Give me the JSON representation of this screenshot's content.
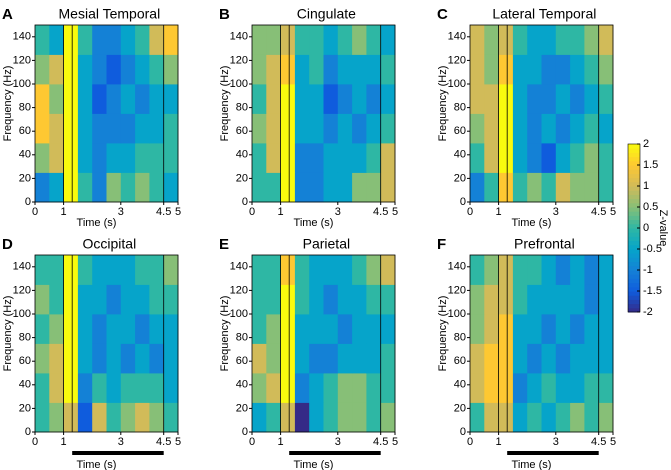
{
  "chart_data": [
    {
      "type": "heatmap",
      "panel": "A",
      "title": "Mesial Temporal",
      "xlabel": "Time (s)",
      "ylabel": "Frequency (Hz)",
      "xlim": [
        0,
        5
      ],
      "ylim": [
        0,
        150
      ],
      "xticks": [
        0,
        1,
        3,
        4.5,
        5
      ],
      "yticks": [
        0,
        20,
        40,
        60,
        80,
        100,
        120,
        140
      ],
      "xbins": [
        0,
        0.5,
        1,
        1.5,
        2,
        2.5,
        3,
        3.5,
        4,
        4.5,
        5
      ],
      "ybins": [
        0,
        25,
        50,
        75,
        100,
        125,
        150
      ],
      "event_lines": [
        1,
        1.3,
        4.5
      ],
      "z": [
        [
          -1,
          -0.5,
          2,
          0,
          -1,
          0.5,
          0,
          0.5,
          0,
          -0.5
        ],
        [
          0.5,
          1,
          2,
          -0.5,
          -1,
          -0.5,
          -0.5,
          0,
          0,
          0
        ],
        [
          1.5,
          1,
          2,
          -0.5,
          -1,
          -1,
          -1,
          -0.5,
          -0.5,
          0
        ],
        [
          1.5,
          0.5,
          2,
          -0.5,
          -1.5,
          -1,
          -0.5,
          -1,
          -0.5,
          -0.5
        ],
        [
          0.5,
          1,
          2,
          -0.5,
          -1,
          -1.5,
          -1,
          -0.5,
          0,
          0.5
        ],
        [
          0,
          -0.5,
          2,
          0,
          -1,
          -1,
          -0.5,
          0,
          1,
          1.5
        ]
      ]
    },
    {
      "type": "heatmap",
      "panel": "B",
      "title": "Cingulate",
      "xlabel": "Time (s)",
      "ylabel": "Frequency (Hz)",
      "xlim": [
        0,
        5
      ],
      "ylim": [
        0,
        150
      ],
      "xticks": [
        0,
        1,
        3,
        4.5,
        5
      ],
      "yticks": [
        0,
        20,
        40,
        60,
        80,
        100,
        120,
        140
      ],
      "xbins": [
        0,
        0.5,
        1,
        1.5,
        2,
        2.5,
        3,
        3.5,
        4,
        4.5,
        5
      ],
      "ybins": [
        0,
        25,
        50,
        75,
        100,
        125,
        150
      ],
      "event_lines": [
        1,
        1.3,
        4.5
      ],
      "z": [
        [
          0,
          0,
          2,
          -1,
          -1,
          -0.5,
          -0.5,
          0.5,
          0.5,
          1
        ],
        [
          0,
          1,
          2,
          -1,
          -1,
          -0.5,
          -0.5,
          -0.5,
          0,
          1
        ],
        [
          0.5,
          1,
          2,
          -0.5,
          -0.5,
          -1,
          -0.5,
          -1,
          -0.5,
          0
        ],
        [
          0,
          1,
          2,
          -0.5,
          -0.5,
          -1.5,
          -1,
          -0.5,
          -1,
          -0.5
        ],
        [
          0.5,
          1,
          1.5,
          -0.5,
          0,
          -1,
          -0.5,
          -0.5,
          -0.5,
          0
        ],
        [
          0.5,
          0.5,
          1,
          0,
          0,
          -0.5,
          0,
          0.5,
          0,
          -0.5
        ]
      ]
    },
    {
      "type": "heatmap",
      "panel": "C",
      "title": "Lateral Temporal",
      "xlabel": "Time (s)",
      "ylabel": "Frequency (Hz)",
      "xlim": [
        0,
        5
      ],
      "ylim": [
        0,
        150
      ],
      "xticks": [
        0,
        1,
        3,
        4.5,
        5
      ],
      "yticks": [
        0,
        20,
        40,
        60,
        80,
        100,
        120,
        140
      ],
      "xbins": [
        0,
        0.5,
        1,
        1.5,
        2,
        2.5,
        3,
        3.5,
        4,
        4.5,
        5
      ],
      "ybins": [
        0,
        25,
        50,
        75,
        100,
        125,
        150
      ],
      "event_lines": [
        1,
        1.3,
        4.5
      ],
      "z": [
        [
          -1,
          0,
          1.5,
          0,
          0.5,
          0,
          1,
          0.5,
          0.5,
          0
        ],
        [
          0,
          1,
          2,
          -0.5,
          -1,
          -1.5,
          -0.5,
          0,
          0.5,
          0
        ],
        [
          0.5,
          1,
          2,
          -0.5,
          -1,
          -0.5,
          -1,
          -0.5,
          0,
          -0.5
        ],
        [
          1,
          1,
          2,
          -0.5,
          -1,
          -1,
          -0.5,
          -1,
          -0.5,
          0
        ],
        [
          1,
          0.5,
          1.5,
          -0.5,
          -0.5,
          -1,
          -1,
          -0.5,
          0,
          0.5
        ],
        [
          1,
          0.5,
          1,
          0,
          -0.5,
          -0.5,
          0,
          0,
          0.5,
          1
        ]
      ]
    },
    {
      "type": "heatmap",
      "panel": "D",
      "title": "Occipital",
      "xlabel": "Time (s)",
      "ylabel": "Frequency (Hz)",
      "xlim": [
        0,
        5
      ],
      "ylim": [
        0,
        150
      ],
      "xticks": [
        0,
        1,
        3,
        4.5,
        5
      ],
      "yticks": [
        0,
        20,
        40,
        60,
        80,
        100,
        120,
        140
      ],
      "xbins": [
        0,
        0.5,
        1,
        1.5,
        2,
        2.5,
        3,
        3.5,
        4,
        4.5,
        5
      ],
      "ybins": [
        0,
        25,
        50,
        75,
        100,
        125,
        150
      ],
      "event_lines": [
        1,
        1.3,
        4.5
      ],
      "bar": [
        1.3,
        4.5
      ],
      "z": [
        [
          0,
          0.5,
          1,
          -1.5,
          1,
          0,
          0.5,
          1,
          0.5,
          0
        ],
        [
          0,
          1,
          2,
          -1,
          0,
          -0.5,
          0,
          0,
          0,
          -0.5
        ],
        [
          0.5,
          1,
          2,
          -0.5,
          -1,
          -0.5,
          -1,
          -0.5,
          -1,
          -0.5
        ],
        [
          0,
          0.5,
          2,
          -0.5,
          -1,
          -0.5,
          -0.5,
          -1,
          -0.5,
          -0.5
        ],
        [
          0.5,
          0,
          2,
          -0.5,
          -0.5,
          -1,
          -0.5,
          -0.5,
          0,
          0
        ],
        [
          0,
          0,
          2,
          0,
          -0.5,
          -0.5,
          -0.5,
          0,
          0,
          0.5
        ]
      ]
    },
    {
      "type": "heatmap",
      "panel": "E",
      "title": "Parietal",
      "xlabel": "Time (s)",
      "ylabel": "Frequency (Hz)",
      "xlim": [
        0,
        5
      ],
      "ylim": [
        0,
        150
      ],
      "xticks": [
        0,
        1,
        3,
        4.5,
        5
      ],
      "yticks": [
        0,
        20,
        40,
        60,
        80,
        100,
        120,
        140
      ],
      "xbins": [
        0,
        0.5,
        1,
        1.5,
        2,
        2.5,
        3,
        3.5,
        4,
        4.5,
        5
      ],
      "ybins": [
        0,
        25,
        50,
        75,
        100,
        125,
        150
      ],
      "event_lines": [
        1,
        1.3,
        4.5
      ],
      "bar": [
        1.3,
        4.5
      ],
      "z": [
        [
          -0.5,
          0,
          1,
          -2,
          -0.5,
          0,
          0.5,
          0.5,
          0,
          0.5
        ],
        [
          0.5,
          1,
          2,
          -1,
          -0.5,
          0,
          0.5,
          0.5,
          0,
          0
        ],
        [
          1,
          0.5,
          2,
          -0.5,
          -1,
          -1,
          -0.5,
          -0.5,
          -0.5,
          0
        ],
        [
          0,
          0.5,
          2,
          -0.5,
          -0.5,
          -0.5,
          -1,
          -0.5,
          -0.5,
          -0.5
        ],
        [
          0,
          0,
          2,
          0,
          -0.5,
          -1,
          -0.5,
          -0.5,
          0,
          0
        ],
        [
          0,
          0,
          1.5,
          0,
          -0.5,
          -0.5,
          -0.5,
          0,
          0.5,
          1
        ]
      ]
    },
    {
      "type": "heatmap",
      "panel": "F",
      "title": "Prefrontal",
      "xlabel": "Time (s)",
      "ylabel": "Frequency (Hz)",
      "xlim": [
        0,
        5
      ],
      "ylim": [
        0,
        150
      ],
      "xticks": [
        0,
        1,
        3,
        4.5,
        5
      ],
      "yticks": [
        0,
        20,
        40,
        60,
        80,
        100,
        120,
        140
      ],
      "xbins": [
        0,
        0.5,
        1,
        1.5,
        2,
        2.5,
        3,
        3.5,
        4,
        4.5,
        5
      ],
      "ybins": [
        0,
        25,
        50,
        75,
        100,
        125,
        150
      ],
      "event_lines": [
        1,
        1.3,
        4.5
      ],
      "bar": [
        1.3,
        4.5
      ],
      "z": [
        [
          0,
          1,
          1,
          -0.5,
          0,
          -0.5,
          0,
          0.5,
          0,
          0.5
        ],
        [
          1,
          1.5,
          1.5,
          -1,
          -0.5,
          0,
          -0.5,
          -0.5,
          0,
          0
        ],
        [
          1,
          1.5,
          1.5,
          -0.5,
          -1,
          -0.5,
          -1,
          -0.5,
          -0.5,
          -0.5
        ],
        [
          0.5,
          1,
          1.5,
          -0.5,
          -0.5,
          -1,
          -0.5,
          -1,
          -0.5,
          -0.5
        ],
        [
          0.5,
          1,
          1,
          0,
          -0.5,
          -0.5,
          -0.5,
          -0.5,
          -1,
          -0.5
        ],
        [
          0,
          0.5,
          1,
          0,
          0,
          -0.5,
          -1,
          -0.5,
          -1,
          -0.5
        ]
      ]
    }
  ],
  "colorbar": {
    "label": "Z-value",
    "lim": [
      -2,
      2
    ],
    "ticks": [
      2,
      1.5,
      1,
      0.5,
      0,
      -0.5,
      -1,
      -1.5,
      -2
    ],
    "colors": [
      "#352a87",
      "#0f5cdd",
      "#1481d6",
      "#06a4ca",
      "#2eb7a4",
      "#87bf77",
      "#d1bb59",
      "#fec832",
      "#f9fb0e"
    ]
  }
}
